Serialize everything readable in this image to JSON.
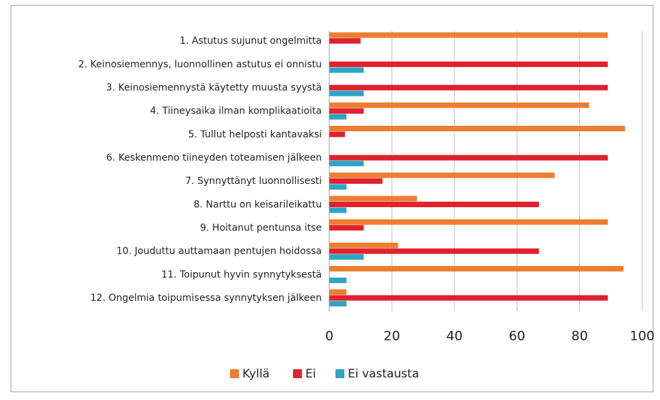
{
  "chart_data": {
    "type": "hbar",
    "categories": [
      "1. Astutus sujunut ongelmitta",
      "2. Keinosiemennys, luonnollinen astutus ei onnistu",
      "3. Keinosiemennystä käytetty muusta syystä",
      "4. Tiineysaika ilman komplikaatioita",
      "5. Tullut helposti kantavaksi",
      "6. Keskenmeno tiineyden toteamisen jälkeen",
      "7. Synnyttänyt luonnollisesti",
      "8. Narttu on keisarileikattu",
      "9. Hoitanut pentunsa itse",
      "10. Jouduttu auttamaan pentujen hoidossa",
      "11. Toipunut hyvin synnytyksestä",
      "12. Ongelmia toipumisessa synnytyksen jälkeen"
    ],
    "series": [
      {
        "name": "Kyllä",
        "color": "#ed7d31",
        "values": [
          89,
          0,
          0,
          83,
          94.5,
          0,
          72,
          28,
          89,
          22,
          94,
          5.5
        ]
      },
      {
        "name": "Ei",
        "color": "#e0212e",
        "values": [
          10,
          89,
          89,
          11,
          5,
          89,
          17,
          67,
          11,
          67,
          0,
          89
        ]
      },
      {
        "name": "Ei vastausta",
        "color": "#2ba6c3",
        "values": [
          0,
          11,
          11,
          5.5,
          0,
          11,
          5.5,
          5.5,
          0,
          11,
          5.5,
          5.5
        ]
      }
    ],
    "xlim": [
      0,
      100
    ],
    "xticks": [
      0,
      20,
      40,
      60,
      80,
      100
    ],
    "grid": true,
    "legend": "bottom"
  }
}
